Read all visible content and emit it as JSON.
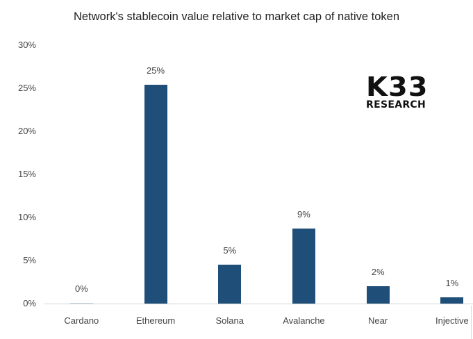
{
  "chart_data": {
    "type": "bar",
    "title": "Network's stablecoin value relative to market cap of native token",
    "xlabel": "",
    "ylabel": "",
    "ylim": [
      0,
      30
    ],
    "grid": false,
    "legend": null,
    "yticks": [
      "30%",
      "25%",
      "20%",
      "15%",
      "10%",
      "5%",
      "0%"
    ],
    "categories": [
      "Cardano",
      "Ethereum",
      "Solana",
      "Avalanche",
      "Near",
      "Injective"
    ],
    "values": [
      0.1,
      25.4,
      4.5,
      8.7,
      2.0,
      0.7
    ],
    "data_labels": [
      "0%",
      "25%",
      "5%",
      "9%",
      "2%",
      "1%"
    ],
    "bar_color": "#1f4e79"
  },
  "logo": {
    "main": "K33",
    "sub": "RESEARCH"
  }
}
